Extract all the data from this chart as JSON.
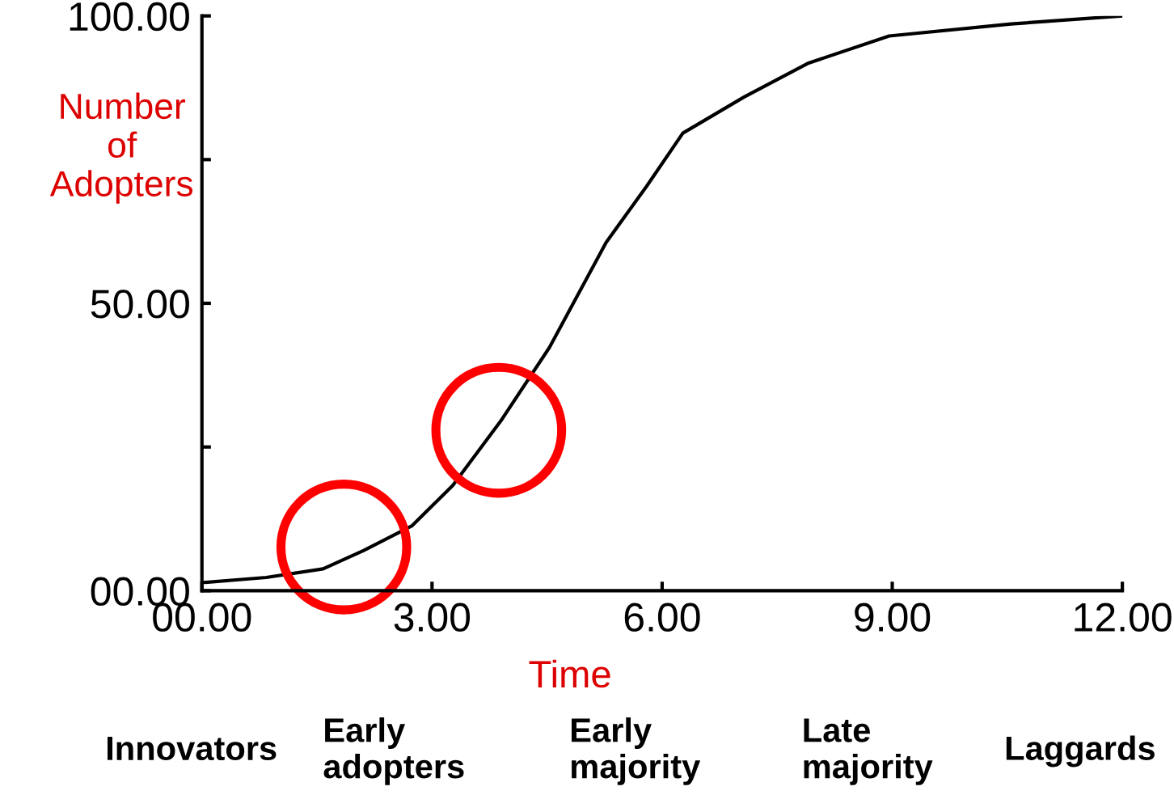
{
  "chart_data": {
    "type": "line",
    "xlabel": "Time",
    "ylabel": "Number\nof\nAdopters",
    "xlim": [
      0,
      12
    ],
    "ylim": [
      0,
      100
    ],
    "xticks": [
      {
        "value": 0,
        "label": "00.00"
      },
      {
        "value": 3,
        "label": "3.00"
      },
      {
        "value": 6,
        "label": "6.00"
      },
      {
        "value": 9,
        "label": "9.00"
      },
      {
        "value": 12,
        "label": "12.00"
      }
    ],
    "yticks": [
      {
        "value": 0,
        "label": "00.00"
      },
      {
        "value": 25,
        "label": null
      },
      {
        "value": 50,
        "label": "50.00"
      },
      {
        "value": 75,
        "label": null
      },
      {
        "value": 100,
        "label": "100.00"
      }
    ],
    "grid": false,
    "legend": false,
    "series": [
      {
        "color": "#000000",
        "x": [
          0,
          0.84,
          1.58,
          2.11,
          2.74,
          3.27,
          3.9,
          4.53,
          5.27,
          5.8,
          6.27,
          7.07,
          7.91,
          8.96,
          10.55,
          12
        ],
        "values": [
          1.4,
          2.3,
          3.8,
          7.0,
          11.3,
          18.3,
          29.6,
          42.3,
          60.6,
          70.4,
          79.6,
          85.9,
          91.8,
          96.5,
          98.6,
          100
        ]
      },
      {
        "type": "scatter",
        "color": "#ff0000",
        "marker": "circle",
        "x": [
          1.85,
          3.87
        ],
        "values": [
          7.6,
          27.9
        ]
      }
    ],
    "annotations": [
      "Innovators",
      "Early\nadopters",
      "Early\nmajority",
      "Late\nmajority",
      "Laggards"
    ]
  }
}
